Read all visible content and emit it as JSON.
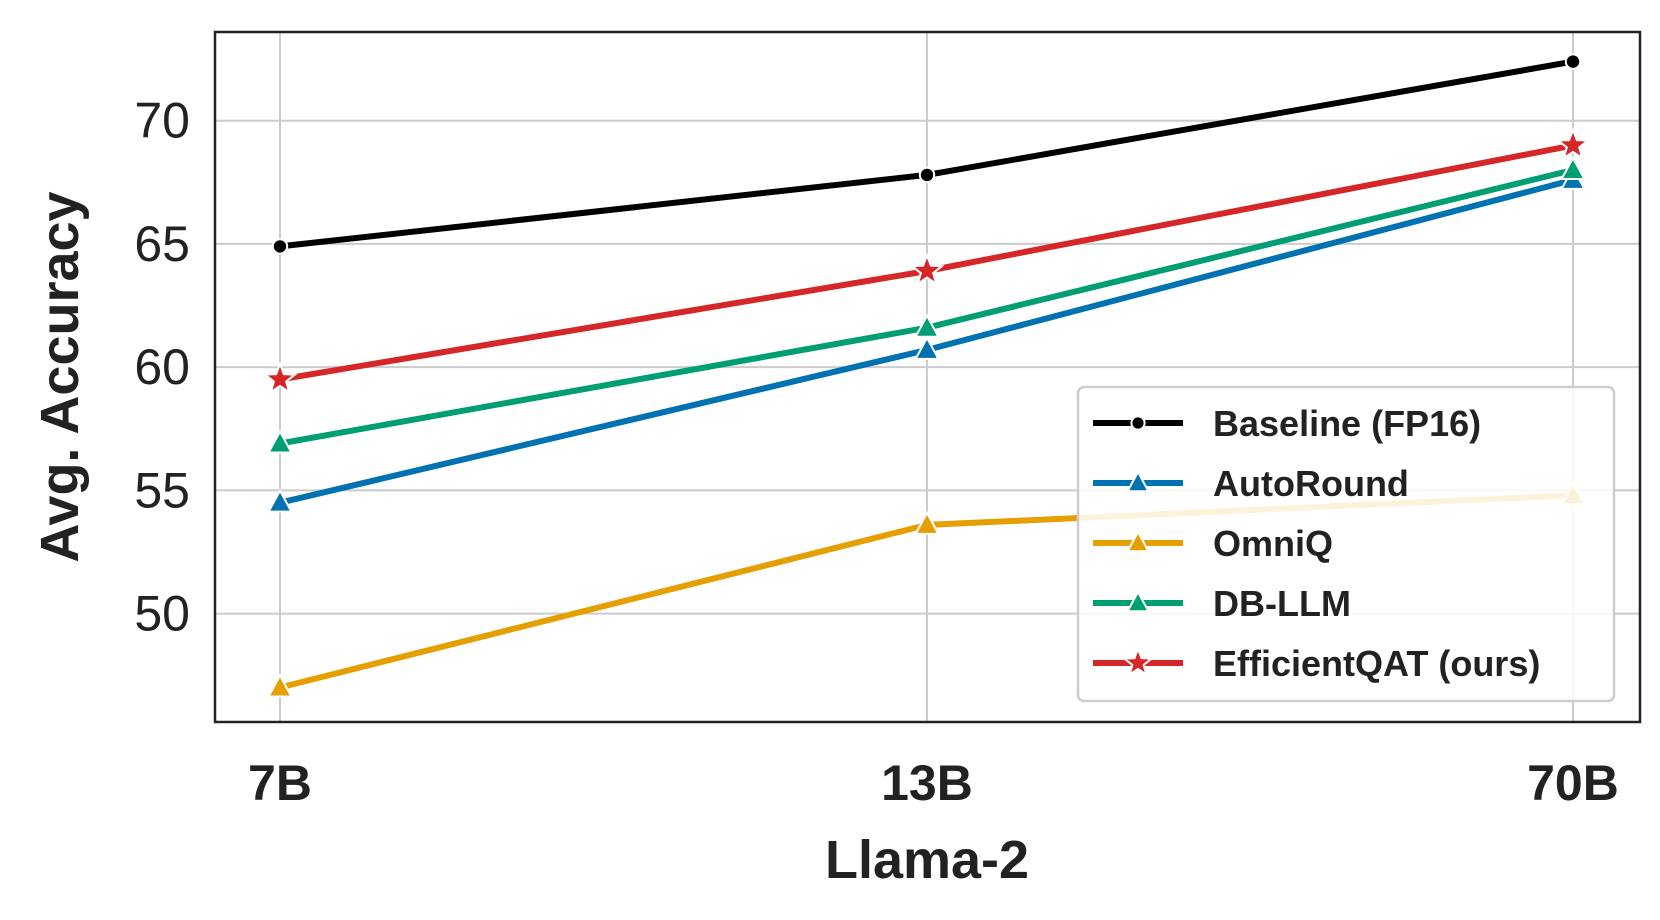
{
  "chart_data": {
    "type": "line",
    "title": "",
    "xlabel": "Llama-2",
    "ylabel": "Avg. Accuracy",
    "categories": [
      "7B",
      "13B",
      "70B"
    ],
    "ylim": [
      45.6,
      73.6
    ],
    "yticks": [
      50,
      55,
      60,
      65,
      70
    ],
    "grid": true,
    "legend_position": "lower-right",
    "series": [
      {
        "name": "Baseline (FP16)",
        "values": [
          64.9,
          67.8,
          72.4
        ],
        "color": "#000000",
        "marker": "dot"
      },
      {
        "name": "AutoRound",
        "values": [
          54.5,
          60.7,
          67.6
        ],
        "color": "#0072b2",
        "marker": "triangle"
      },
      {
        "name": "OmniQ",
        "values": [
          47.0,
          53.6,
          54.8
        ],
        "color": "#e69f00",
        "marker": "triangle"
      },
      {
        "name": "DB-LLM",
        "values": [
          56.9,
          61.6,
          68.0
        ],
        "color": "#009e73",
        "marker": "triangle"
      },
      {
        "name": "EfficientQAT (ours)",
        "values": [
          59.5,
          63.9,
          69.0
        ],
        "color": "#d62728",
        "marker": "star"
      }
    ]
  }
}
